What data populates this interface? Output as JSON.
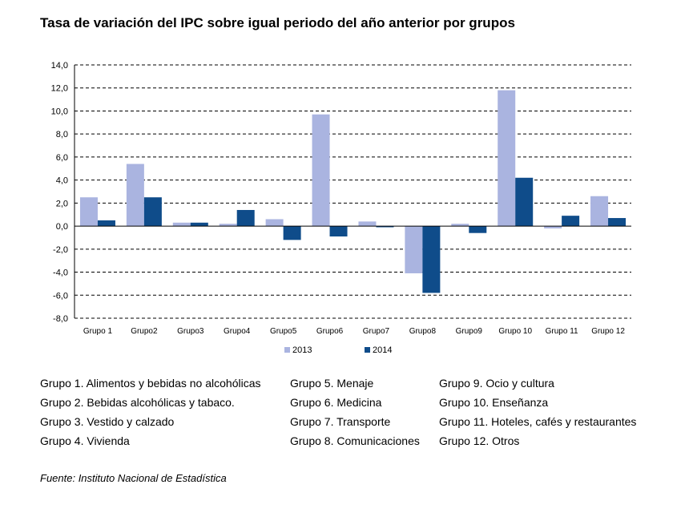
{
  "title": "Tasa de variación del IPC sobre igual periodo del año anterior por grupos",
  "chart_data": {
    "type": "bar",
    "title": "Tasa de variación del IPC sobre igual periodo del año anterior por grupos",
    "categories": [
      "Grupo 1",
      "Grupo2",
      "Grupo3",
      "Grupo4",
      "Grupo5",
      "Grupo6",
      "Grupo7",
      "Grupo8",
      "Grupo9",
      "Grupo 10",
      "Grupo 11",
      "Grupo 12"
    ],
    "series": [
      {
        "name": "2013",
        "color": "#aab4e0",
        "values": [
          2.5,
          5.4,
          0.3,
          0.2,
          0.6,
          9.7,
          0.4,
          -4.1,
          0.2,
          11.8,
          -0.2,
          2.6
        ]
      },
      {
        "name": "2014",
        "color": "#0f4c8a",
        "values": [
          0.5,
          2.5,
          0.3,
          1.4,
          -1.2,
          -0.9,
          -0.1,
          -5.8,
          -0.6,
          4.2,
          0.9,
          0.7
        ]
      }
    ],
    "ylim": [
      -8,
      14
    ],
    "yticks": [
      "14,0",
      "12,0",
      "10,0",
      "8,0",
      "6,0",
      "4,0",
      "2,0",
      "0,0",
      "-2,0",
      "-4,0",
      "-6,0",
      "-8,0"
    ],
    "grid": true,
    "legend_position": "bottom"
  },
  "groups_legend": {
    "col1": [
      "Grupo 1. Alimentos y bebidas no alcohólicas",
      "Grupo 2. Bebidas alcohólicas y  tabaco.",
      "Grupo 3. Vestido y calzado",
      "Grupo 4. Vivienda"
    ],
    "col2": [
      "Grupo 5. Menaje",
      "Grupo 6. Medicina",
      "Grupo 7. Transporte",
      "Grupo 8. Comunicaciones"
    ],
    "col3": [
      "Grupo 9. Ocio y cultura",
      "Grupo 10. Enseñanza",
      "Grupo 11. Hoteles, cafés y restaurantes",
      "Grupo 12. Otros"
    ]
  },
  "source": "Fuente: Instituto Nacional de Estadística"
}
